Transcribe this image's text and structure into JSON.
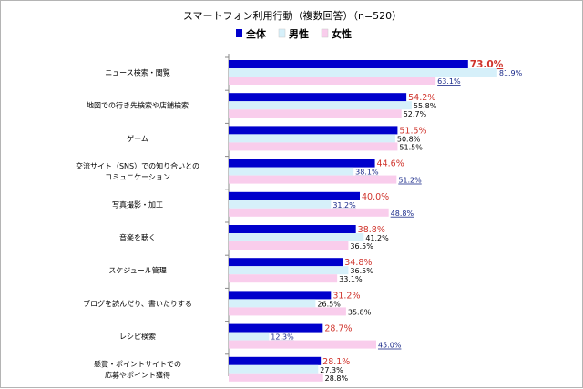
{
  "chart_data": {
    "type": "bar",
    "orientation": "horizontal",
    "title": "スマートフォン利用行動（複数回答）（n=520）",
    "unit_suffix": "%",
    "categories": [
      [
        "ニュース検索・閲覧"
      ],
      [
        "地図での行き先検索や店舗検索"
      ],
      [
        "ゲーム"
      ],
      [
        "交流サイト（SNS）での知り合いとの",
        "コミュニケーション"
      ],
      [
        "写真撮影・加工"
      ],
      [
        "音楽を聴く"
      ],
      [
        "スケジュール管理"
      ],
      [
        "ブログを読んだり、書いたりする"
      ],
      [
        "レシピ検索"
      ],
      [
        "懸賞・ポイントサイトでの",
        "応募やポイント獲得"
      ]
    ],
    "series": [
      {
        "name": "全体",
        "color": "#0000cc",
        "values": [
          73.0,
          54.2,
          51.5,
          44.6,
          40.0,
          38.8,
          34.8,
          31.2,
          28.7,
          28.1
        ]
      },
      {
        "name": "男性",
        "color": "#d6f0fa",
        "values": [
          81.9,
          55.8,
          50.8,
          38.1,
          31.2,
          41.2,
          36.5,
          26.5,
          12.3,
          27.3
        ]
      },
      {
        "name": "女性",
        "color": "#f9cdec",
        "values": [
          63.1,
          52.7,
          51.5,
          51.2,
          48.8,
          36.5,
          33.1,
          35.8,
          45.0,
          28.8
        ]
      }
    ],
    "emphasized_labels": {
      "total": [
        0
      ],
      "male": [
        0,
        3,
        4,
        8
      ],
      "female": [
        0,
        3,
        4,
        8
      ]
    },
    "xlim": [
      0,
      100
    ],
    "grid": false,
    "legend_position": "top"
  }
}
